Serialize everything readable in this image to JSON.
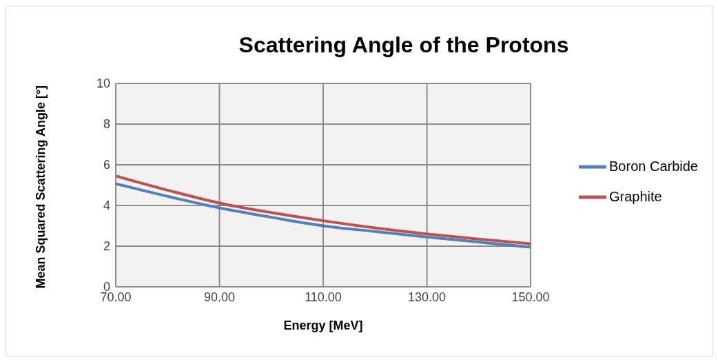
{
  "chart_data": {
    "type": "line",
    "title": "Scattering Angle of the Protons",
    "xlabel": "Energy [MeV]",
    "ylabel": "Mean Squared Scattering Angle [°]",
    "x": [
      70,
      80,
      90,
      100,
      110,
      120,
      130,
      140,
      150
    ],
    "series": [
      {
        "name": "Graphite",
        "color": "#c0504d",
        "values": [
          5.45,
          4.75,
          4.12,
          3.65,
          3.25,
          2.9,
          2.6,
          2.35,
          2.12
        ]
      },
      {
        "name": "Boron Carbide",
        "color": "#4f81bd",
        "values": [
          5.07,
          4.45,
          3.88,
          3.42,
          3.0,
          2.72,
          2.45,
          2.2,
          1.95
        ]
      }
    ],
    "xlim": [
      70,
      150
    ],
    "xticks": [
      {
        "value": 70,
        "label": "70.00"
      },
      {
        "value": 90,
        "label": "90.00"
      },
      {
        "value": 110,
        "label": "110.00"
      },
      {
        "value": 130,
        "label": "130.00"
      },
      {
        "value": 150,
        "label": "150.00"
      }
    ],
    "ylim": [
      0,
      10
    ],
    "yticks": [
      0,
      2,
      4,
      6,
      8,
      10
    ],
    "grid": true,
    "legend": "right",
    "marker": "none",
    "line_style": "solid"
  }
}
